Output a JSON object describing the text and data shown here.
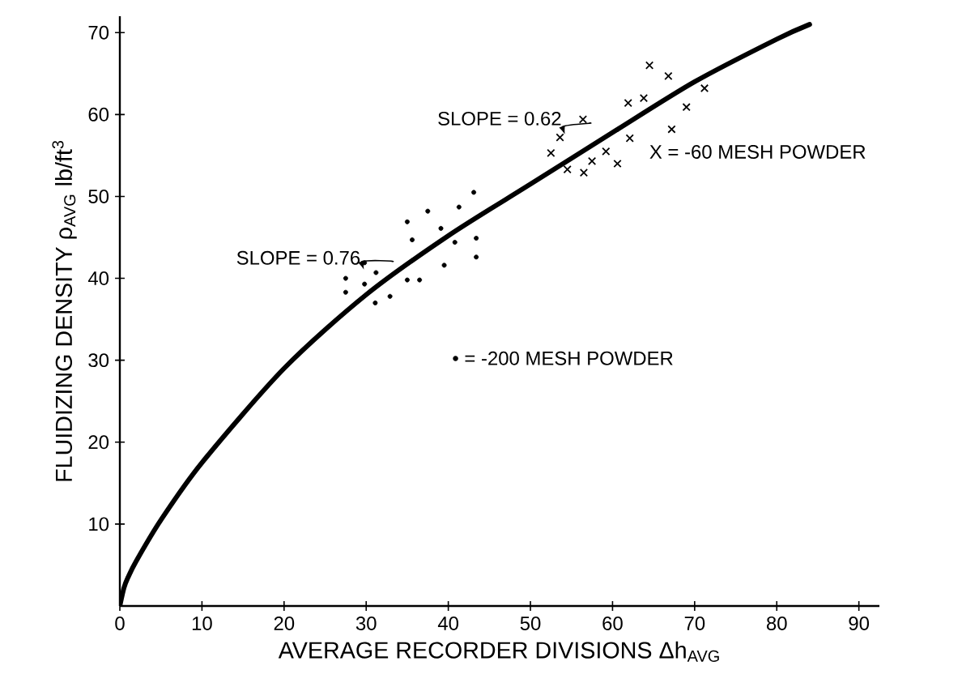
{
  "chart_data": {
    "type": "line",
    "xlabel": "AVERAGE RECORDER DIVISIONS Δh$_{AVG}$",
    "ylabel": "FLUIDIZING DENSITY ρ$_{AVG}$ lb/ft$^{3}$",
    "xlim": [
      0,
      92.5
    ],
    "ylim": [
      0,
      72
    ],
    "xticks": [
      0,
      10,
      20,
      30,
      40,
      50,
      60,
      70,
      80,
      90
    ],
    "yticks": [
      10,
      20,
      30,
      40,
      50,
      60,
      70
    ],
    "annotations": [
      {
        "text": "SLOPE = 0.76",
        "x": 34.5,
        "y": 41
      },
      {
        "text": "SLOPE = 0.62",
        "x": 58.5,
        "y": 57.5
      },
      "X = -60 MESH POWDER",
      "• = -200 MESH POWDER"
    ],
    "series": [
      {
        "color": "#000000",
        "marker": "none",
        "x": [
          0,
          0.5,
          1,
          2,
          5,
          10,
          20,
          30,
          40,
          50,
          60,
          70,
          80,
          84
        ],
        "values": [
          0,
          2.2,
          3.5,
          5.5,
          10.5,
          17.5,
          29,
          38,
          45.2,
          51.5,
          57.8,
          64,
          69.2,
          71
        ]
      },
      {
        "type": "scatter",
        "color": "#000000",
        "marker": "cross",
        "x": [
          52.5,
          53.6,
          54.5,
          56.4,
          56.5,
          57.5,
          59.2,
          60.6,
          62.1,
          61.9,
          63.8,
          64.5,
          66.8,
          67.2,
          69.0,
          71.2
        ],
        "values": [
          55.3,
          57.2,
          53.3,
          59.4,
          52.9,
          54.3,
          55.5,
          54.0,
          57.1,
          61.4,
          62.0,
          66.0,
          64.7,
          58.2,
          60.9,
          63.2
        ]
      },
      {
        "type": "scatter",
        "color": "#000000",
        "marker": "circle",
        "x": [
          27.5,
          27.5,
          29.8,
          29.8,
          31.2,
          31.1,
          32.9,
          35.0,
          35.0,
          35.6,
          36.5,
          37.5,
          39.1,
          39.5,
          40.8,
          41.3,
          43.1,
          43.4,
          43.4
        ],
        "values": [
          40.0,
          38.3,
          41.9,
          39.3,
          40.7,
          37.0,
          37.8,
          46.9,
          39.8,
          44.7,
          39.8,
          48.2,
          46.1,
          41.6,
          44.4,
          48.7,
          50.5,
          44.9,
          42.6
        ]
      }
    ]
  }
}
